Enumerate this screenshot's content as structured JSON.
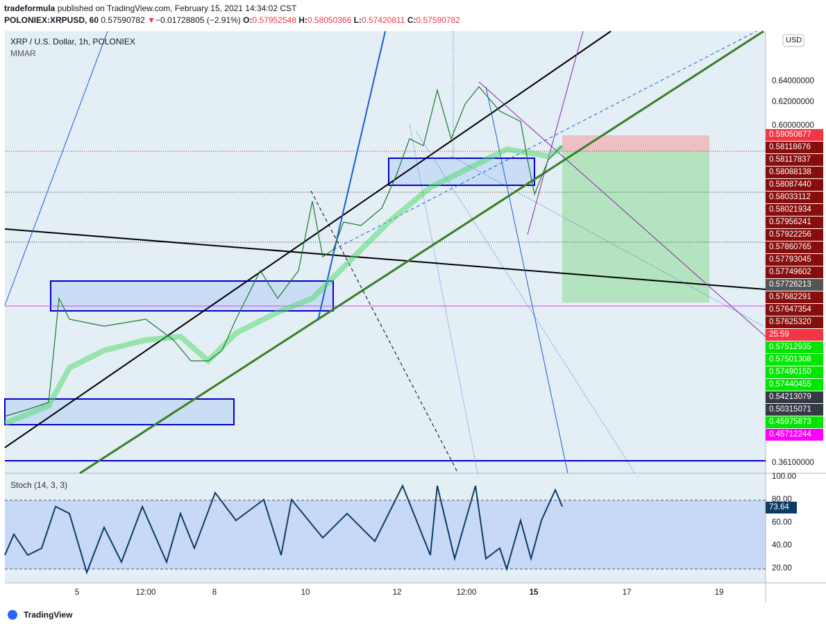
{
  "header": {
    "author": "tradeformula",
    "published": "published on TradingView.com, February 15, 2021 14:34:02 CST"
  },
  "quote": {
    "symbol": "POLONIEX:XRPUSD, 60",
    "last": "0.57590782",
    "arrow": "▼",
    "change": "−0.01728805 (−2.91%)",
    "open_label": "O:",
    "open": "0.57952548",
    "high_label": "H:",
    "high": "0.58050366",
    "low_label": "L:",
    "low": "0.57420811",
    "close_label": "C:",
    "close": "0.57590782"
  },
  "legend": {
    "title": "XRP / U.S. Dollar, 1h, POLONIEX",
    "indicator": "MMAR",
    "currency": "USD"
  },
  "price_axis": {
    "ticks": [
      "0.64000000",
      "0.62000000",
      "0.60000000",
      "0.36100000"
    ],
    "badges": [
      {
        "text": "0.59050877",
        "color": "#f23645"
      },
      {
        "text": "0.58118676",
        "color": "#880e0e"
      },
      {
        "text": "0.58117837",
        "color": "#880e0e"
      },
      {
        "text": "0.58088138",
        "color": "#880e0e"
      },
      {
        "text": "0.58087440",
        "color": "#880e0e"
      },
      {
        "text": "0.58033112",
        "color": "#880e0e"
      },
      {
        "text": "0.58021934",
        "color": "#880e0e"
      },
      {
        "text": "0.57956241",
        "color": "#880e0e"
      },
      {
        "text": "0.57922256",
        "color": "#880e0e"
      },
      {
        "text": "0.57860765",
        "color": "#880e0e"
      },
      {
        "text": "0.57793045",
        "color": "#880e0e"
      },
      {
        "text": "0.57749602",
        "color": "#880e0e"
      },
      {
        "text": "0.57726213",
        "color": "#555555"
      },
      {
        "text": "0.57682291",
        "color": "#880e0e"
      },
      {
        "text": "0.57647354",
        "color": "#880e0e"
      },
      {
        "text": "0.57625320",
        "color": "#880e0e"
      },
      {
        "text": "25:59",
        "color": "#f23645"
      },
      {
        "text": "0.57512935",
        "color": "#00e600"
      },
      {
        "text": "0.57501308",
        "color": "#00e600"
      },
      {
        "text": "0.57490150",
        "color": "#00e600"
      },
      {
        "text": "0.57440455",
        "color": "#00e600"
      },
      {
        "text": "0.54213079",
        "color": "#363a45"
      },
      {
        "text": "0.50315071",
        "color": "#363a45"
      },
      {
        "text": "0.45975873",
        "color": "#00e600"
      },
      {
        "text": "0.45712244",
        "color": "#ff00ff"
      }
    ]
  },
  "stoch": {
    "title": "Stoch (14, 3, 3)",
    "ticks": [
      "100.00",
      "80.00",
      "60.00",
      "40.00",
      "20.00"
    ],
    "badge": "73.64"
  },
  "time_axis": [
    "5",
    "12:00",
    "8",
    "10",
    "12",
    "12:00",
    "15",
    "17",
    "19"
  ],
  "footer": "TradingView"
}
